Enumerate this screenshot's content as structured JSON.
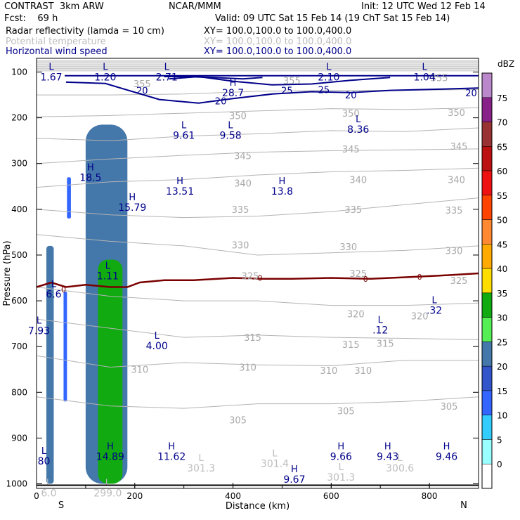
{
  "header": {
    "title": "CONTRAST  3km ARW",
    "center": "NCAR/MMM",
    "init": "Init: 12 UTC Wed 12 Feb 14",
    "fcst": "Fcst:    69 h",
    "valid": "Valid: 09 UTC Sat 15 Feb 14 (19 ChT Sat 15 Feb 14)",
    "fields": [
      {
        "name": "Radar reflectivity (lamda = 10 cm)",
        "xy": "XY= 100.0,100.0 to 100.0,400.0",
        "color": "#000000"
      },
      {
        "name": "Potential temperature",
        "xy": "XY= 100.0,100.0 to 100.0,400.0",
        "color": "#bdbdbd"
      },
      {
        "name": "Horizontal wind speed",
        "xy": "XY= 100.0,100.0 to 100.0,400.0",
        "color": "#00008b"
      }
    ]
  },
  "chart_data": {
    "type": "cross-section",
    "xlabel": "Distance (km)",
    "ylabel": "Pressure (hPa)",
    "xlim": [
      0,
      900
    ],
    "ylim": [
      1010,
      70
    ],
    "x_ticks": [
      0,
      200,
      400,
      600,
      800
    ],
    "y_ticks": [
      100,
      200,
      300,
      400,
      500,
      600,
      700,
      800,
      900,
      1000
    ],
    "endpoints": {
      "left": "S",
      "right": "N"
    },
    "colorbar": {
      "title": "dBZ",
      "levels": [
        0,
        5,
        10,
        15,
        20,
        25,
        30,
        35,
        40,
        45,
        50,
        55,
        60,
        65,
        70,
        75
      ],
      "colors": [
        "#ffffff",
        "#99ffff",
        "#33ccff",
        "#3366ff",
        "#3355cc",
        "#4477aa",
        "#55ee55",
        "#11aa11",
        "#ffdd00",
        "#ffaa00",
        "#ff8833",
        "#ff4400",
        "#ee1111",
        "#bb1111",
        "#993333",
        "#882288",
        "#bb88cc"
      ]
    },
    "reflectivity_cells": [
      {
        "x": [
          20,
          35
        ],
        "p": [
          480,
          1000
        ],
        "dbz": 20
      },
      {
        "x": [
          55,
          62
        ],
        "p": [
          580,
          820
        ],
        "dbz": 10
      },
      {
        "x": [
          62,
          70
        ],
        "p": [
          330,
          420
        ],
        "dbz": 10
      },
      {
        "x": [
          100,
          185
        ],
        "p": [
          215,
          1000
        ],
        "dbz": 20
      },
      {
        "x": [
          125,
          175
        ],
        "p": [
          510,
          1000
        ],
        "dbz": 30
      }
    ],
    "theta_levels": [
      305,
      310,
      315,
      320,
      325,
      330,
      335,
      340,
      345,
      350,
      355
    ],
    "theta_contours": [
      {
        "level": 355,
        "x": [
          0,
          150,
          300,
          450,
          600,
          750,
          900
        ],
        "p": [
          150,
          150,
          148,
          142,
          140,
          140,
          138
        ]
      },
      {
        "level": 350,
        "x": [
          0,
          150,
          300,
          450,
          600,
          750,
          900
        ],
        "p": [
          198,
          195,
          190,
          185,
          180,
          182,
          178
        ]
      },
      {
        "level": 345,
        "x": [
          0,
          150,
          300,
          450,
          600,
          750,
          900
        ],
        "p": [
          245,
          250,
          240,
          235,
          228,
          230,
          222
        ]
      },
      {
        "level": 340,
        "x": [
          0,
          150,
          300,
          450,
          600,
          750,
          900
        ],
        "p": [
          300,
          290,
          282,
          275,
          272,
          270,
          268
        ]
      },
      {
        "level": 335,
        "x": [
          0,
          150,
          300,
          450,
          600,
          750,
          900
        ],
        "p": [
          352,
          340,
          335,
          325,
          318,
          315,
          310
        ]
      },
      {
        "level": 330,
        "x": [
          0,
          150,
          300,
          450,
          600,
          750,
          900
        ],
        "p": [
          400,
          412,
          418,
          415,
          405,
          390,
          375
        ]
      },
      {
        "level": 325,
        "x": [
          0,
          150,
          300,
          450,
          600,
          750,
          900
        ],
        "p": [
          455,
          470,
          480,
          500,
          495,
          490,
          480
        ]
      },
      {
        "level": 320,
        "x": [
          0,
          150,
          300,
          450,
          600,
          750,
          900
        ],
        "p": [
          570,
          590,
          600,
          600,
          610,
          610,
          605
        ]
      },
      {
        "level": 315,
        "x": [
          0,
          150,
          300,
          450,
          600,
          750,
          900
        ],
        "p": [
          640,
          660,
          680,
          675,
          680,
          682,
          685
        ]
      },
      {
        "level": 310,
        "x": [
          0,
          150,
          300,
          450,
          600,
          750,
          900
        ],
        "p": [
          720,
          745,
          735,
          740,
          742,
          730,
          730
        ]
      },
      {
        "level": 305,
        "x": [
          0,
          150,
          300,
          450,
          600,
          750,
          900
        ],
        "p": [
          810,
          830,
          835,
          825,
          825,
          820,
          810
        ]
      }
    ],
    "theta_labels": [
      {
        "text": "355",
        "x": 215,
        "p": 125
      },
      {
        "text": "355",
        "x": 520,
        "p": 118
      },
      {
        "text": "355",
        "x": 820,
        "p": 112
      },
      {
        "text": "350",
        "x": 410,
        "p": 195
      },
      {
        "text": "350",
        "x": 640,
        "p": 190
      },
      {
        "text": "350",
        "x": 855,
        "p": 188
      },
      {
        "text": "345",
        "x": 420,
        "p": 283
      },
      {
        "text": "345",
        "x": 640,
        "p": 268
      },
      {
        "text": "345",
        "x": 860,
        "p": 262
      },
      {
        "text": "340",
        "x": 420,
        "p": 343
      },
      {
        "text": "340",
        "x": 655,
        "p": 335
      },
      {
        "text": "340",
        "x": 855,
        "p": 335
      },
      {
        "text": "335",
        "x": 415,
        "p": 400
      },
      {
        "text": "335",
        "x": 645,
        "p": 400
      },
      {
        "text": "335",
        "x": 850,
        "p": 402
      },
      {
        "text": "330",
        "x": 415,
        "p": 478
      },
      {
        "text": "330",
        "x": 635,
        "p": 482
      },
      {
        "text": "330",
        "x": 850,
        "p": 490
      },
      {
        "text": "325",
        "x": 435,
        "p": 545
      },
      {
        "text": "325",
        "x": 655,
        "p": 540
      },
      {
        "text": "325",
        "x": 860,
        "p": 555
      },
      {
        "text": "320",
        "x": 650,
        "p": 628
      },
      {
        "text": "320",
        "x": 780,
        "p": 633
      },
      {
        "text": "315",
        "x": 440,
        "p": 680
      },
      {
        "text": "315",
        "x": 640,
        "p": 695
      },
      {
        "text": "315",
        "x": 710,
        "p": 693
      },
      {
        "text": "310",
        "x": 210,
        "p": 750
      },
      {
        "text": "310",
        "x": 430,
        "p": 745
      },
      {
        "text": "310",
        "x": 595,
        "p": 752
      },
      {
        "text": "310",
        "x": 665,
        "p": 752
      },
      {
        "text": "305",
        "x": 410,
        "p": 860
      },
      {
        "text": "305",
        "x": 630,
        "p": 840
      },
      {
        "text": "305",
        "x": 840,
        "p": 830
      }
    ],
    "wind_contours": [
      {
        "level": 20,
        "x": [
          60,
          140,
          250,
          330,
          400,
          480,
          560,
          640,
          720,
          800,
          900
        ],
        "p": [
          122,
          125,
          160,
          168,
          158,
          148,
          143,
          145,
          140,
          138,
          135
        ]
      },
      {
        "level": 25,
        "x": [
          270,
          330,
          400,
          480,
          560,
          640,
          720
        ],
        "p": [
          115,
          110,
          120,
          128,
          126,
          118,
          112
        ]
      },
      {
        "level": 28.7,
        "x": [
          260,
          300,
          360,
          420,
          460
        ],
        "p": [
          110,
          110,
          112,
          115,
          112
        ]
      }
    ],
    "wind_labels": [
      {
        "text": "20",
        "x": 215,
        "p": 140
      },
      {
        "text": "20",
        "x": 375,
        "p": 163
      },
      {
        "text": "20",
        "x": 640,
        "p": 150
      },
      {
        "text": "20",
        "x": 885,
        "p": 145
      },
      {
        "text": "25",
        "x": 510,
        "p": 140
      },
      {
        "text": "25",
        "x": 585,
        "p": 138
      }
    ],
    "zero_isotherm": {
      "label": "0",
      "x": [
        0,
        30,
        60,
        100,
        150,
        185,
        210,
        260,
        320,
        400,
        460,
        520,
        600,
        680,
        760,
        820,
        900
      ],
      "p": [
        570,
        560,
        570,
        565,
        570,
        570,
        560,
        555,
        555,
        550,
        552,
        552,
        550,
        552,
        548,
        545,
        540
      ]
    },
    "zero_labels": [
      {
        "text": "0",
        "x": 55,
        "p": 575
      },
      {
        "text": "0",
        "x": 455,
        "p": 550
      },
      {
        "text": "0",
        "x": 670,
        "p": 552
      },
      {
        "text": "0",
        "x": 780,
        "p": 548
      }
    ],
    "extrema": [
      {
        "type": "L",
        "value": "1.67",
        "x": 30,
        "p": 95,
        "color": "#00008b"
      },
      {
        "type": "L",
        "value": "1.20",
        "x": 140,
        "p": 95,
        "color": "#00008b"
      },
      {
        "type": "L",
        "value": "2.71",
        "x": 265,
        "p": 95,
        "color": "#00008b"
      },
      {
        "type": "L",
        "value": "2.10",
        "x": 595,
        "p": 95,
        "color": "#00008b"
      },
      {
        "type": "L",
        "value": "1.04",
        "x": 790,
        "p": 95,
        "color": "#00008b"
      },
      {
        "type": "H",
        "value": "28.7",
        "x": 400,
        "p": 130,
        "color": "#00008b"
      },
      {
        "type": "L",
        "value": "9.61",
        "x": 300,
        "p": 223,
        "color": "#00008b"
      },
      {
        "type": "L",
        "value": "9.58",
        "x": 395,
        "p": 223,
        "color": "#00008b"
      },
      {
        "type": "L",
        "value": "8.36",
        "x": 655,
        "p": 210,
        "color": "#00008b"
      },
      {
        "type": "H",
        "value": "18.5",
        "x": 110,
        "p": 315,
        "color": "#00008b"
      },
      {
        "type": "H",
        "value": "13.51",
        "x": 292,
        "p": 345,
        "color": "#00008b"
      },
      {
        "type": "H",
        "value": "13.8",
        "x": 500,
        "p": 345,
        "color": "#00008b"
      },
      {
        "type": "H",
        "value": "15.79",
        "x": 195,
        "p": 380,
        "color": "#00008b"
      },
      {
        "type": "L",
        "value": "1.11",
        "x": 145,
        "p": 530,
        "color": "#00008b"
      },
      {
        "type": "L",
        "value": "6.6",
        "x": 35,
        "p": 570,
        "color": "#00008b"
      },
      {
        "type": "L",
        "value": ".32",
        "x": 810,
        "p": 605,
        "color": "#00008b"
      },
      {
        "type": "L",
        "value": ".12",
        "x": 700,
        "p": 648,
        "color": "#00008b"
      },
      {
        "type": "L",
        "value": "7.93",
        "x": 5,
        "p": 650,
        "color": "#00008b"
      },
      {
        "type": "L",
        "value": "4.00",
        "x": 245,
        "p": 683,
        "color": "#00008b"
      },
      {
        "type": "H",
        "value": "14.89",
        "x": 150,
        "p": 925,
        "color": "#00008b"
      },
      {
        "type": "H",
        "value": "11.62",
        "x": 275,
        "p": 925,
        "color": "#00008b"
      },
      {
        "type": "H",
        "value": "9.66",
        "x": 620,
        "p": 925,
        "color": "#00008b"
      },
      {
        "type": "H",
        "value": "9.43",
        "x": 715,
        "p": 925,
        "color": "#00008b"
      },
      {
        "type": "H",
        "value": "9.46",
        "x": 835,
        "p": 925,
        "color": "#00008b"
      },
      {
        "type": "L",
        "value": "80",
        "x": 15,
        "p": 935,
        "color": "#00008b"
      },
      {
        "type": "H",
        "value": "9.67",
        "x": 525,
        "p": 975,
        "color": "#00008b"
      },
      {
        "type": "L",
        "value": "301.3",
        "x": 335,
        "p": 950,
        "color": "#bdbdbd"
      },
      {
        "type": "L",
        "value": "301.4",
        "x": 485,
        "p": 940,
        "color": "#bdbdbd"
      },
      {
        "type": "L",
        "value": "301.3",
        "x": 620,
        "p": 970,
        "color": "#bdbdbd"
      },
      {
        "type": "L",
        "value": "300.6",
        "x": 740,
        "p": 950,
        "color": "#bdbdbd"
      },
      {
        "type": "L",
        "value": "299.0",
        "x": 145,
        "p": 1005,
        "color": "#bdbdbd"
      },
      {
        "type": "L",
        "value": "6.0",
        "x": 25,
        "p": 1005,
        "color": "#bdbdbd"
      }
    ]
  }
}
